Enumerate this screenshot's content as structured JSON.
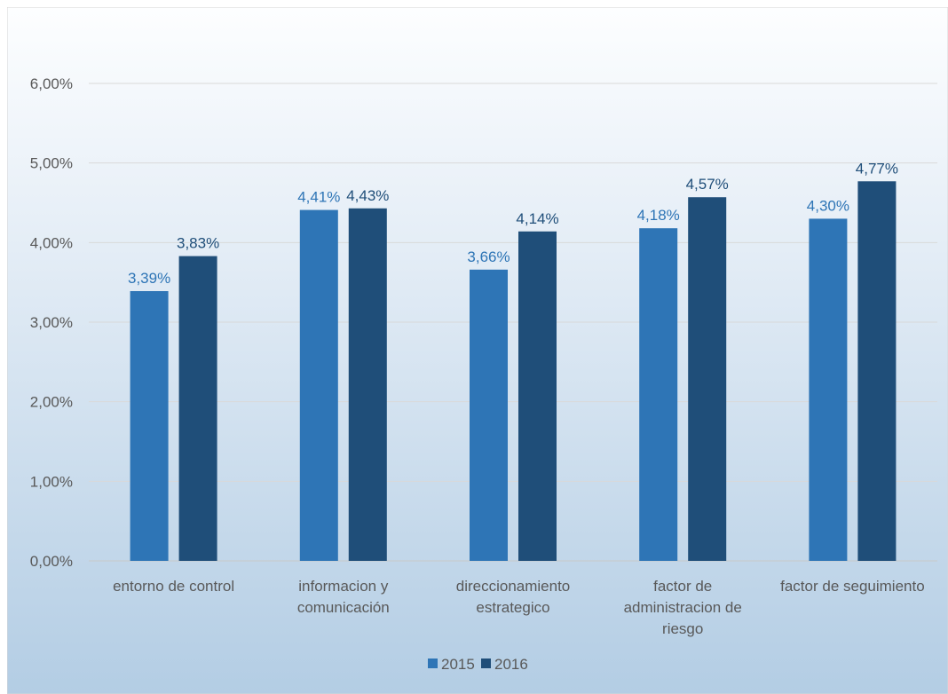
{
  "chart_data": {
    "type": "bar",
    "categories": [
      [
        "entorno de control"
      ],
      [
        "informacion y",
        "comunicación"
      ],
      [
        "direccionamiento",
        "estrategico"
      ],
      [
        "factor de",
        "administracion de",
        "riesgo"
      ],
      [
        "factor de seguimiento"
      ]
    ],
    "series": [
      {
        "name": "2015",
        "color": "#2e75b6",
        "values": [
          3.39,
          4.41,
          3.66,
          4.18,
          4.3
        ],
        "labels": [
          "3,39%",
          "4,41%",
          "3,66%",
          "4,18%",
          "4,30%"
        ]
      },
      {
        "name": "2016",
        "color": "#1f4e79",
        "values": [
          3.83,
          4.43,
          4.14,
          4.57,
          4.77
        ],
        "labels": [
          "3,83%",
          "4,43%",
          "4,14%",
          "4,57%",
          "4,77%"
        ]
      }
    ],
    "ylim": [
      0,
      6
    ],
    "yticks": [
      "0,00%",
      "1,00%",
      "2,00%",
      "3,00%",
      "4,00%",
      "5,00%",
      "6,00%"
    ],
    "grid": true,
    "legend": "bottom",
    "title": "",
    "xlabel": "",
    "ylabel": ""
  }
}
